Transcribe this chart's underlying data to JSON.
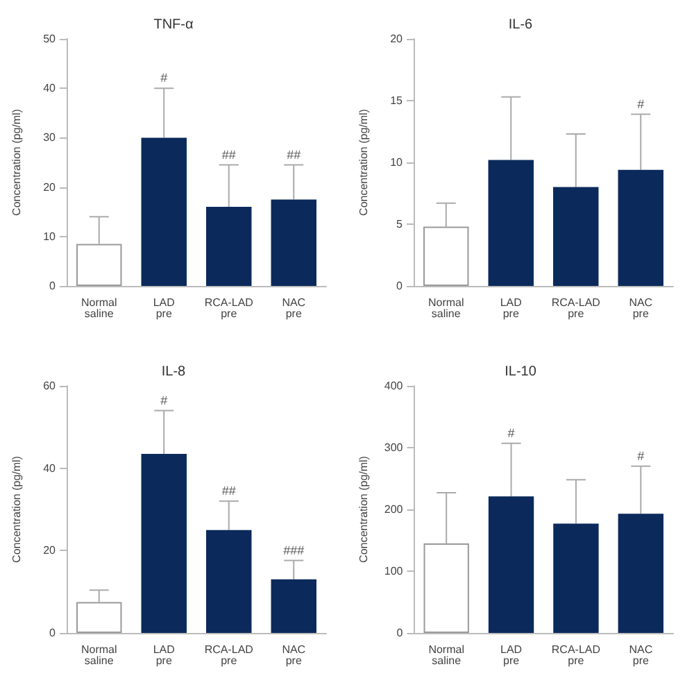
{
  "chart_data": [
    {
      "type": "bar",
      "title": "TNF-α",
      "ylabel": "Concentration (pg/ml)",
      "categories": [
        "Normal saline",
        "LAD pre",
        "RCA-LAD pre",
        "NAC pre"
      ],
      "values": [
        8.5,
        30,
        16,
        17.5
      ],
      "colors": [
        "#ffffff",
        "#0b2a5b",
        "#0b2a5b",
        "#0b2a5b"
      ],
      "errors": [
        [
          8.5,
          14
        ],
        [
          30,
          40
        ],
        [
          16,
          24.5
        ],
        [
          17.5,
          24.5
        ]
      ],
      "ylim": [
        0,
        50
      ],
      "yticks": [
        0,
        10,
        20,
        30,
        40,
        50
      ],
      "grid": false,
      "annotations": [
        {
          "text": "#",
          "x": "LAD pre",
          "y": 40
        },
        {
          "text": "##",
          "x": "RCA-LAD pre",
          "y": 24.5
        },
        {
          "text": "##",
          "x": "NAC pre",
          "y": 24.5
        }
      ]
    },
    {
      "type": "bar",
      "title": "IL-6",
      "ylabel": "Concentration (pg/ml)",
      "categories": [
        "Normal saline",
        "LAD pre",
        "RCA-LAD pre",
        "NAC pre"
      ],
      "values": [
        4.8,
        10.2,
        8,
        9.4
      ],
      "colors": [
        "#ffffff",
        "#0b2a5b",
        "#0b2a5b",
        "#0b2a5b"
      ],
      "errors": [
        [
          4.8,
          6.7
        ],
        [
          10.2,
          15.3
        ],
        [
          8,
          12.3
        ],
        [
          9.4,
          13.9
        ]
      ],
      "ylim": [
        0,
        20
      ],
      "yticks": [
        0,
        5,
        10,
        15,
        20
      ],
      "grid": false,
      "annotations": [
        {
          "text": "#",
          "x": "NAC pre",
          "y": 13.9
        }
      ]
    },
    {
      "type": "bar",
      "title": "IL-8",
      "ylabel": "Concentration (pg/ml)",
      "categories": [
        "Normal saline",
        "LAD pre",
        "RCA-LAD pre",
        "NAC pre"
      ],
      "values": [
        7.5,
        43.5,
        25,
        13
      ],
      "colors": [
        "#ffffff",
        "#0b2a5b",
        "#0b2a5b",
        "#0b2a5b"
      ],
      "errors": [
        [
          7.5,
          10.4
        ],
        [
          43.5,
          54
        ],
        [
          25,
          32
        ],
        [
          13,
          17.6
        ]
      ],
      "ylim": [
        0,
        60
      ],
      "yticks": [
        0,
        20,
        40,
        60
      ],
      "grid": false,
      "annotations": [
        {
          "text": "#",
          "x": "LAD pre",
          "y": 54
        },
        {
          "text": "##",
          "x": "RCA-LAD pre",
          "y": 32
        },
        {
          "text": "###",
          "x": "NAC pre",
          "y": 17.6
        }
      ]
    },
    {
      "type": "bar",
      "title": "IL-10",
      "ylabel": "Concentration (pg/ml)",
      "categories": [
        "Normal saline",
        "LAD pre",
        "RCA-LAD pre",
        "NAC pre"
      ],
      "values": [
        145,
        221,
        177,
        193
      ],
      "colors": [
        "#ffffff",
        "#0b2a5b",
        "#0b2a5b",
        "#0b2a5b"
      ],
      "errors": [
        [
          145,
          227
        ],
        [
          221,
          307
        ],
        [
          177,
          248
        ],
        [
          193,
          270
        ]
      ],
      "ylim": [
        0,
        400
      ],
      "yticks": [
        0,
        100,
        200,
        300,
        400
      ],
      "grid": false,
      "annotations": [
        {
          "text": "#",
          "x": "LAD pre",
          "y": 307
        },
        {
          "text": "#",
          "x": "NAC pre",
          "y": 270
        }
      ]
    }
  ]
}
